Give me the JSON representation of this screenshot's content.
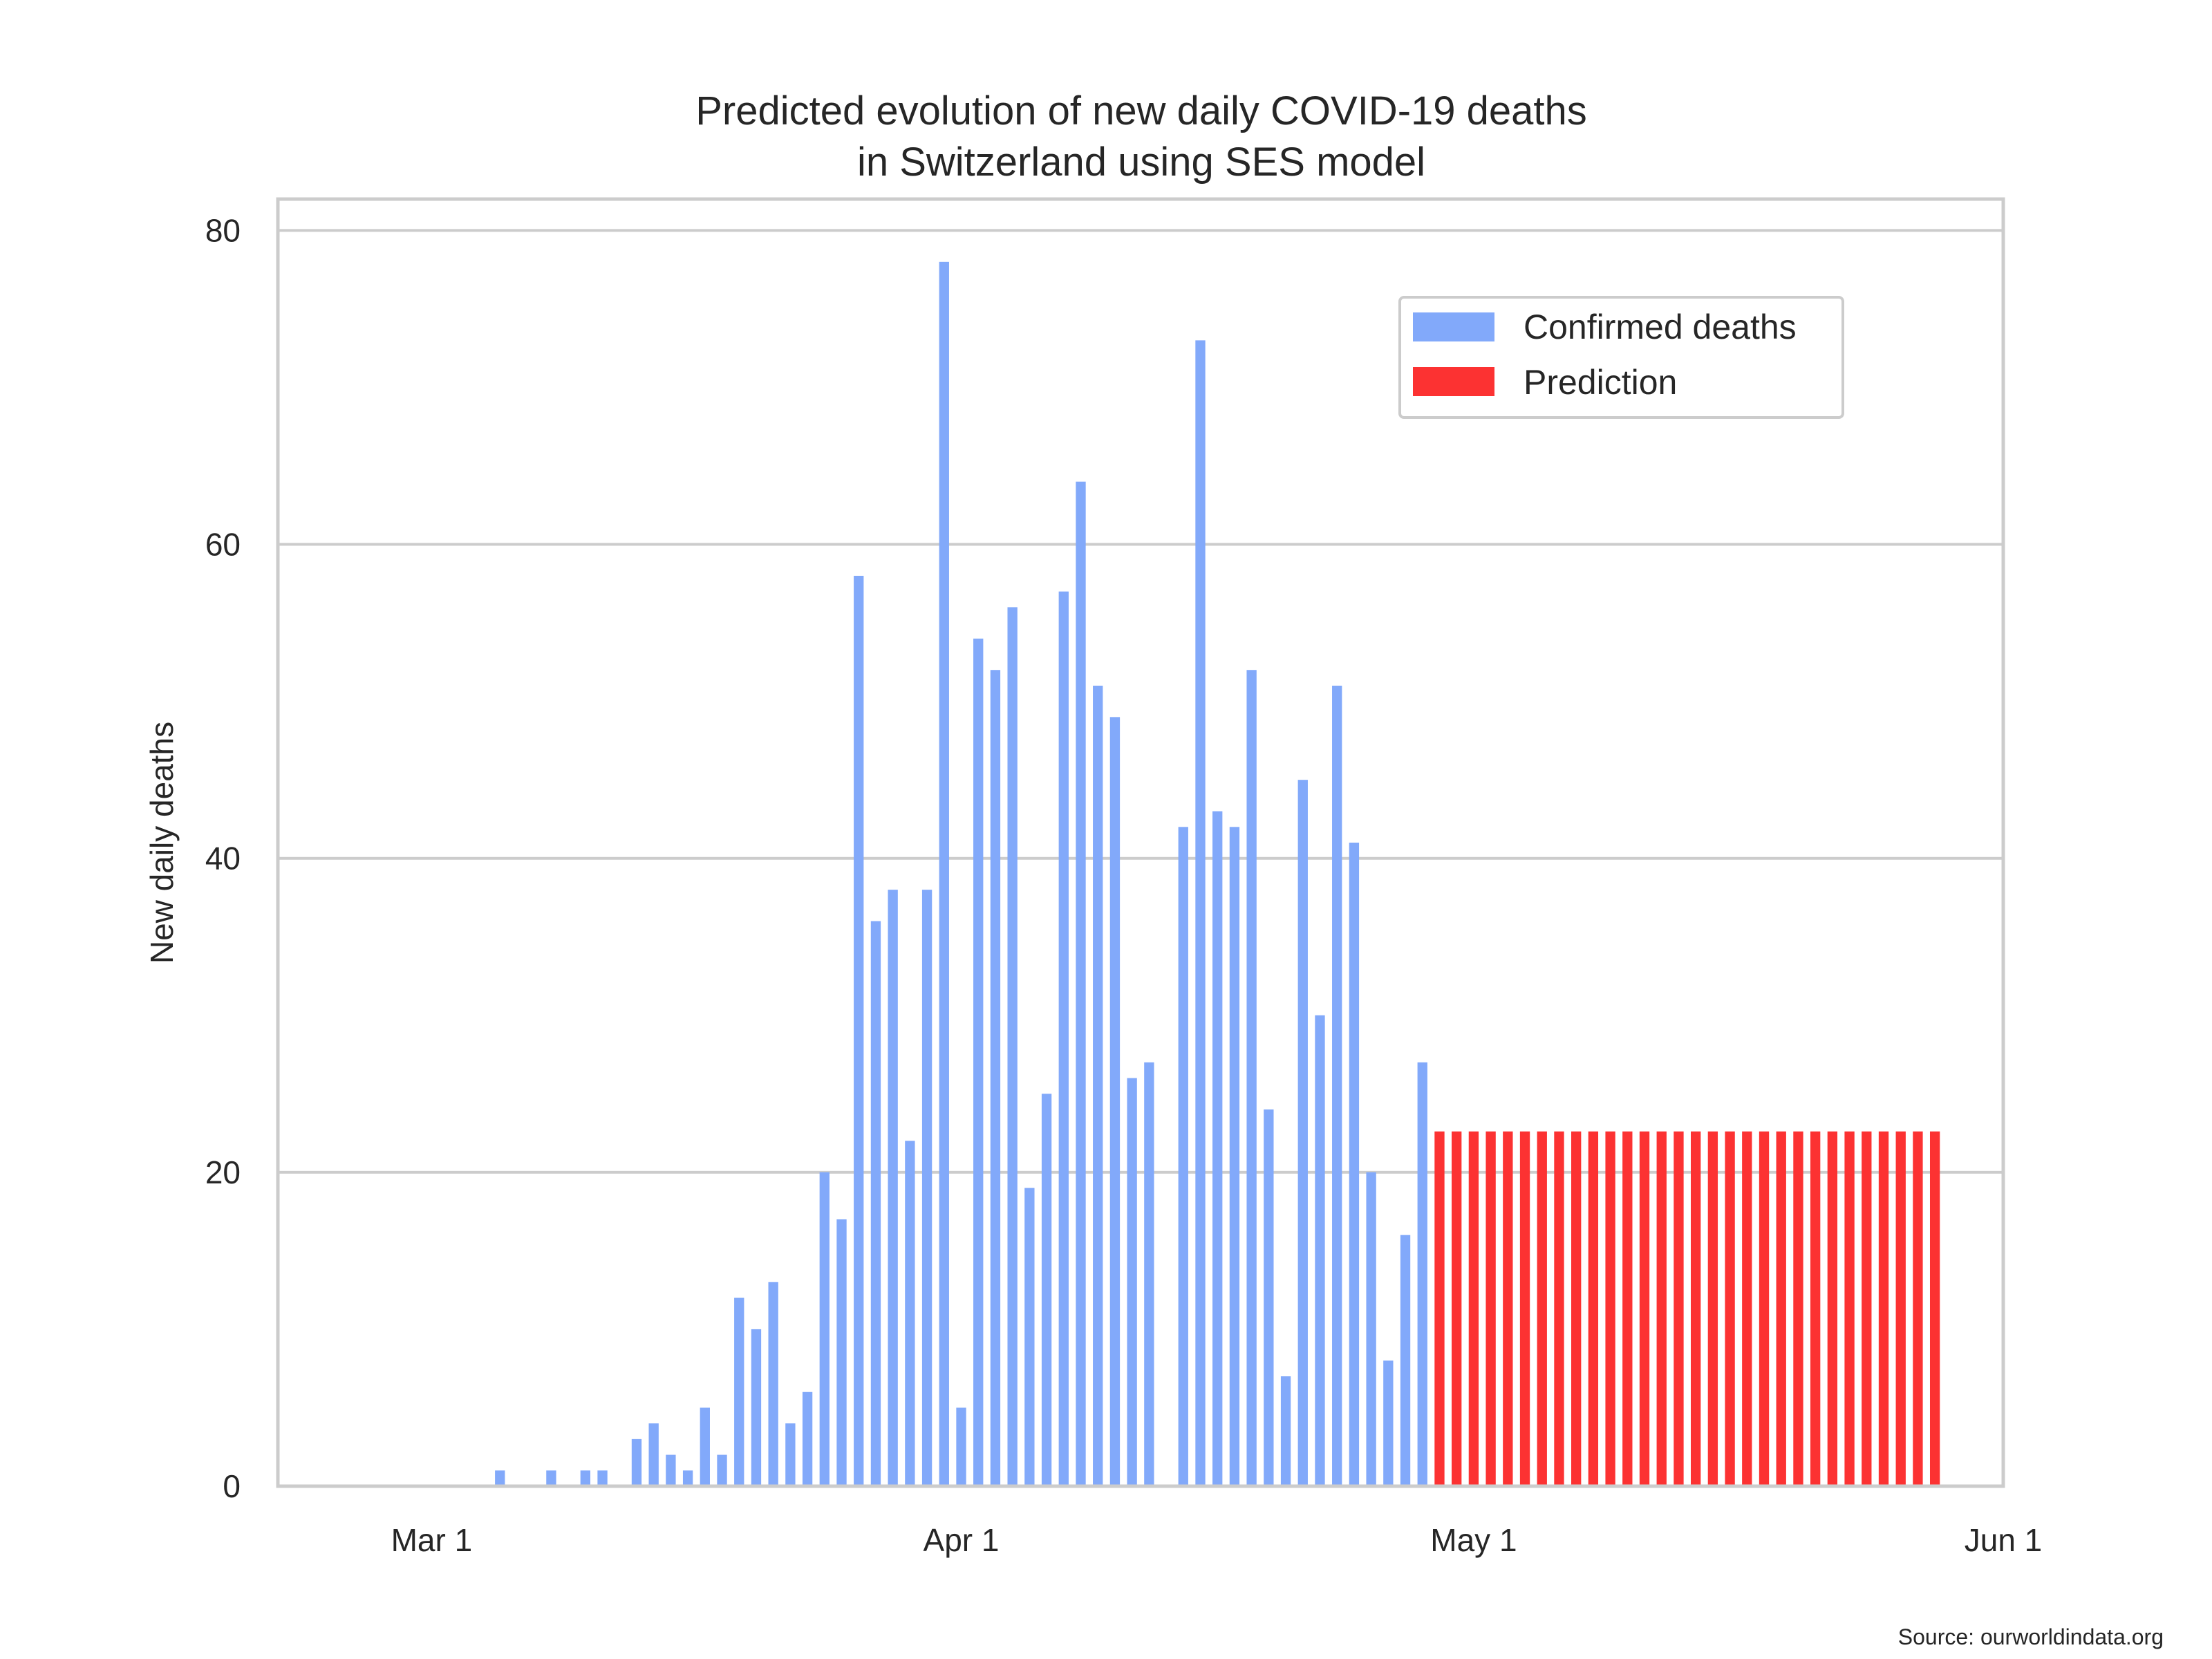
{
  "chart_data": {
    "type": "bar",
    "title": [
      "Predicted evolution of new daily COVID-19 deaths",
      "in Switzerland using SES model"
    ],
    "xlabel": "",
    "ylabel": "New daily deaths",
    "ylim": [
      0,
      82
    ],
    "y_ticks": [
      0,
      20,
      40,
      60,
      80
    ],
    "y_tick_labels": [
      "0",
      "20",
      "40",
      "60",
      "80"
    ],
    "x_range": [
      "2020-02-21",
      "2020-06-01"
    ],
    "x_ticks": [
      {
        "date": "2020-03-01",
        "label": "Mar 1"
      },
      {
        "date": "2020-04-01",
        "label": "Apr 1"
      },
      {
        "date": "2020-05-01",
        "label": "May 1"
      },
      {
        "date": "2020-06-01",
        "label": "Jun 1"
      }
    ],
    "grid": "horizontal",
    "legend_position": "top-right",
    "series": [
      {
        "name": "Confirmed deaths",
        "color": "#82a9fa",
        "start_date": "2020-02-25",
        "values": [
          0,
          0,
          0,
          0,
          0,
          0,
          0,
          0,
          0,
          1,
          0,
          0,
          1,
          0,
          1,
          1,
          0,
          3,
          4,
          2,
          1,
          5,
          2,
          12,
          10,
          13,
          4,
          6,
          20,
          17,
          58,
          36,
          38,
          22,
          38,
          78,
          5,
          54,
          52,
          56,
          19,
          25,
          57,
          64,
          51,
          49,
          26,
          27,
          0,
          42,
          73,
          43,
          42,
          52,
          24,
          7,
          45,
          30,
          51,
          41,
          20,
          8,
          16,
          27
        ]
      },
      {
        "name": "Prediction",
        "color": "#fc3232",
        "start_date": "2020-04-29",
        "values": [
          22.6,
          22.6,
          22.6,
          22.6,
          22.6,
          22.6,
          22.6,
          22.6,
          22.6,
          22.6,
          22.6,
          22.6,
          22.6,
          22.6,
          22.6,
          22.6,
          22.6,
          22.6,
          22.6,
          22.6,
          22.6,
          22.6,
          22.6,
          22.6,
          22.6,
          22.6,
          22.6,
          22.6,
          22.6,
          22.6
        ]
      }
    ],
    "source": "Source: ourworldindata.org"
  }
}
